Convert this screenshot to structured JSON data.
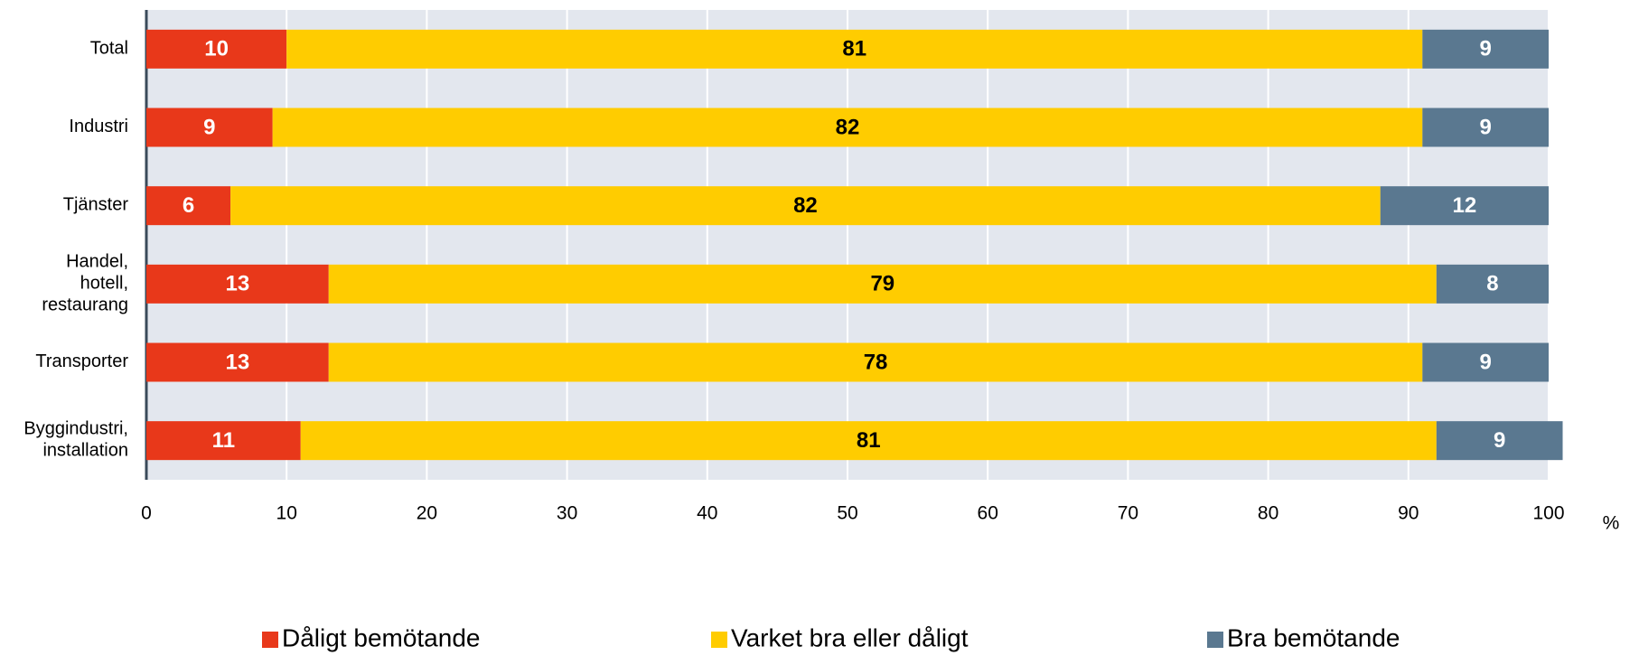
{
  "chart_data": {
    "type": "stacked_barh",
    "unit": "%",
    "categories": [
      [
        "Total"
      ],
      [
        "Industri"
      ],
      [
        "Tjänster"
      ],
      [
        "Handel,",
        "hotell,",
        "restaurang"
      ],
      [
        "Transporter"
      ],
      [
        "Byggindustri,",
        "installation"
      ]
    ],
    "series": [
      {
        "name": "Dåligt bemötande",
        "color": "#e8381a",
        "label_color": "#ffffff",
        "values": [
          10,
          9,
          6,
          13,
          13,
          11
        ]
      },
      {
        "name": "Varket bra eller dåligt",
        "color": "#ffcc00",
        "label_color": "#000000",
        "values": [
          81,
          82,
          82,
          79,
          78,
          81
        ]
      },
      {
        "name": "Bra bemötande",
        "color": "#5a7890",
        "label_color": "#ffffff",
        "values": [
          9,
          9,
          12,
          8,
          9,
          9
        ]
      }
    ],
    "xlim": [
      0,
      100
    ],
    "xticks": [
      0,
      10,
      20,
      30,
      40,
      50,
      60,
      70,
      80,
      90,
      100
    ],
    "grid": true,
    "legend": "bottom"
  }
}
